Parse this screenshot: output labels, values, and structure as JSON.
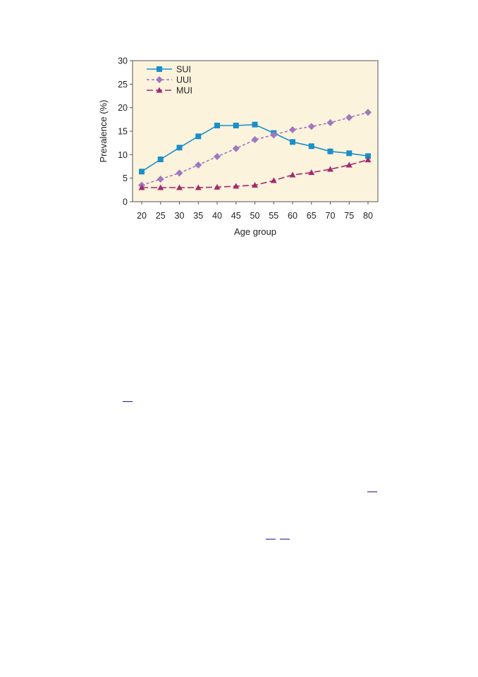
{
  "chart_data": {
    "type": "line",
    "xlabel": "Age group",
    "ylabel": "Prevalence (%)",
    "ylim": [
      0,
      30
    ],
    "yticks": [
      0,
      5,
      10,
      15,
      20,
      25,
      30
    ],
    "x": [
      20,
      25,
      30,
      35,
      40,
      45,
      50,
      55,
      60,
      65,
      70,
      75,
      80
    ],
    "legend_position": "top-left",
    "grid": false,
    "background_color": "#fbf3dc",
    "series": [
      {
        "name": "SUI",
        "color": "#1a8fc9",
        "marker": "square",
        "dash": "solid",
        "values": [
          6.4,
          9.0,
          11.5,
          13.9,
          16.2,
          16.2,
          16.4,
          14.6,
          12.7,
          11.8,
          10.7,
          10.3,
          9.7
        ]
      },
      {
        "name": "UUI",
        "color": "#a078bf",
        "marker": "diamond",
        "dash": "short-dash",
        "values": [
          3.5,
          4.8,
          6.1,
          7.8,
          9.6,
          11.3,
          13.2,
          14.2,
          15.3,
          16.0,
          16.8,
          17.9,
          19.0
        ]
      },
      {
        "name": "MUI",
        "color": "#a42a6e",
        "marker": "triangle",
        "dash": "long-dash",
        "values": [
          3.0,
          3.0,
          3.0,
          3.0,
          3.1,
          3.3,
          3.5,
          4.5,
          5.7,
          6.2,
          6.9,
          7.8,
          8.9
        ]
      }
    ]
  }
}
